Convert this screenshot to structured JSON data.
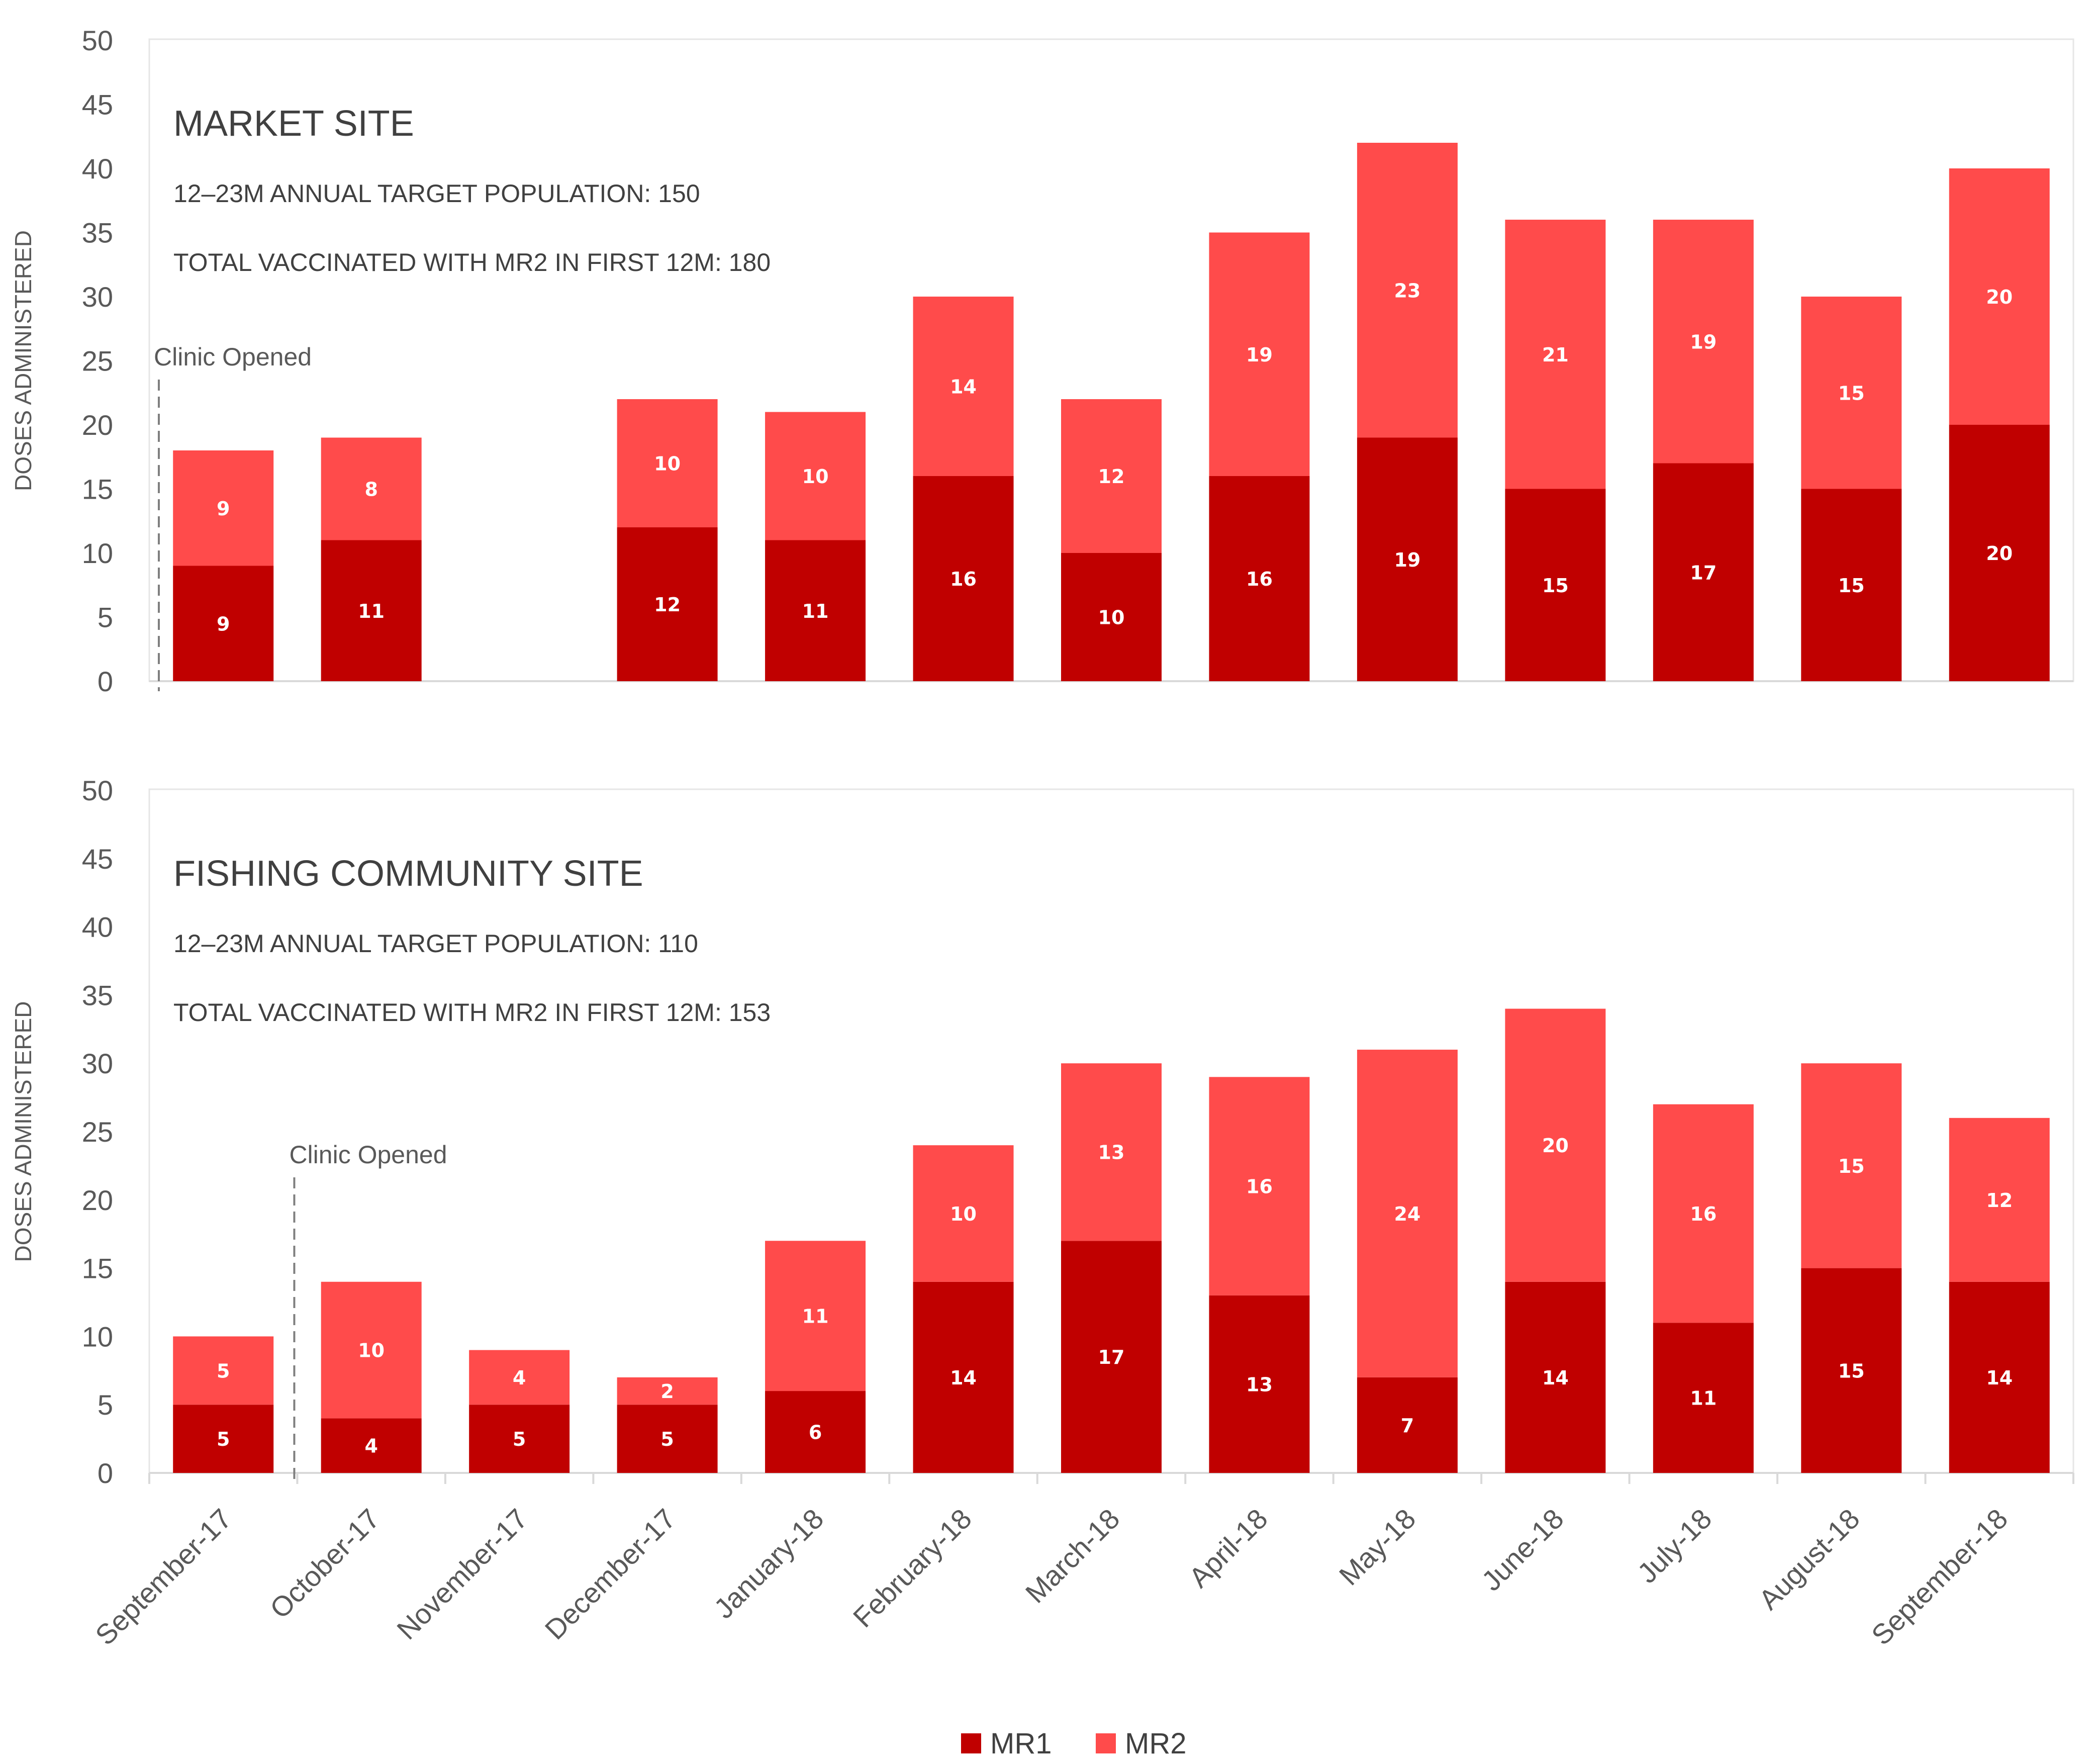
{
  "chart_data": {
    "type": "bar",
    "stacked": true,
    "categories": [
      "September-17",
      "October-17",
      "November-17",
      "December-17",
      "January-18",
      "February-18",
      "March-18",
      "April-18",
      "May-18",
      "June-18",
      "July-18",
      "August-18",
      "September-18"
    ],
    "legend": [
      {
        "name": "MR1",
        "color": "#c00000"
      },
      {
        "name": "MR2",
        "color": "#ff4b4b"
      }
    ],
    "panels": [
      {
        "title": "MARKET SITE",
        "subtitle1": "12–23M ANNUAL  TARGET  POPULATION:  150",
        "subtitle2": "TOTAL VACCINATED  WITH  MR2 IN FIRST 12M: 180",
        "ylabel": "DOSES ADMINISTERED",
        "ylim": [
          0,
          50
        ],
        "yticks": [
          0,
          5,
          10,
          15,
          20,
          25,
          30,
          35,
          40,
          45,
          50
        ],
        "clinic_opened_label": "Clinic Opened",
        "clinic_opened_category": 0,
        "series": [
          {
            "name": "MR1",
            "values": [
              9,
              11,
              null,
              12,
              11,
              16,
              10,
              16,
              19,
              15,
              17,
              15,
              20
            ]
          },
          {
            "name": "MR2",
            "values": [
              9,
              8,
              null,
              10,
              10,
              14,
              12,
              19,
              23,
              21,
              19,
              15,
              20
            ]
          }
        ]
      },
      {
        "title": "FISHING COMMUNITY SITE",
        "subtitle1": "12–23M ANNUAL  TARGET  POPULATION:  110",
        "subtitle2": "TOTAL VACCINATED  WITH  MR2 IN FIRST 12M: 153",
        "ylabel": "DOSES ADMINISTERED",
        "ylim": [
          0,
          50
        ],
        "yticks": [
          0,
          5,
          10,
          15,
          20,
          25,
          30,
          35,
          40,
          45,
          50
        ],
        "clinic_opened_label": "Clinic Opened",
        "clinic_opened_category": 1,
        "series": [
          {
            "name": "MR1",
            "values": [
              5,
              4,
              5,
              5,
              6,
              14,
              17,
              13,
              7,
              14,
              11,
              15,
              14
            ]
          },
          {
            "name": "MR2",
            "values": [
              5,
              10,
              4,
              2,
              11,
              10,
              13,
              16,
              24,
              20,
              16,
              15,
              12
            ]
          }
        ]
      }
    ]
  }
}
